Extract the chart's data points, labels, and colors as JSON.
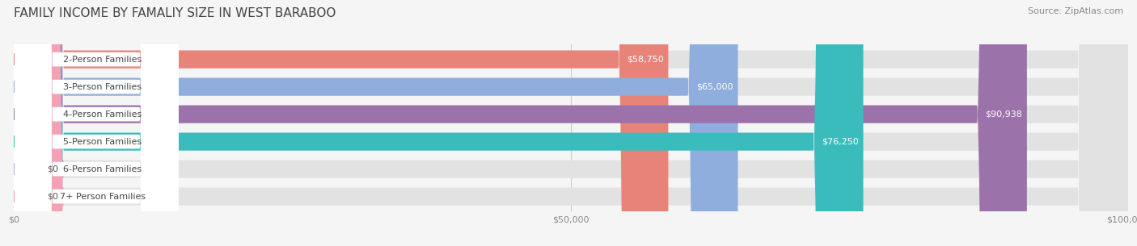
{
  "title": "FAMILY INCOME BY FAMALIY SIZE IN WEST BARABOO",
  "source": "Source: ZipAtlas.com",
  "categories": [
    "2-Person Families",
    "3-Person Families",
    "4-Person Families",
    "5-Person Families",
    "6-Person Families",
    "7+ Person Families"
  ],
  "values": [
    58750,
    65000,
    90938,
    76250,
    0,
    0
  ],
  "bar_colors": [
    "#E8837A",
    "#8FAEDD",
    "#9B72AA",
    "#3BBCBC",
    "#AAAADD",
    "#F4A0B5"
  ],
  "xlim": [
    0,
    100000
  ],
  "xticks": [
    0,
    50000,
    100000
  ],
  "xticklabels": [
    "$0",
    "$50,000",
    "$100,000"
  ],
  "background_color": "#F5F5F5",
  "bar_background": "#E2E2E2",
  "title_fontsize": 11,
  "source_fontsize": 8,
  "label_fontsize": 8,
  "value_fontsize": 8,
  "bar_height": 0.65
}
